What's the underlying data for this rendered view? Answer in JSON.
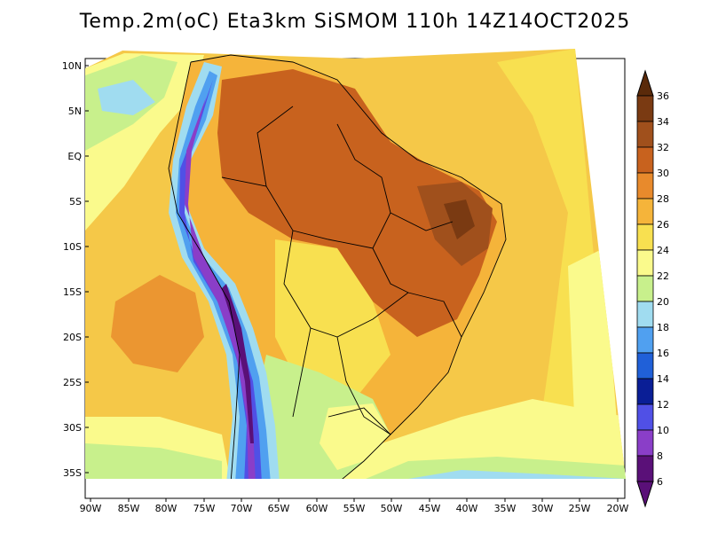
{
  "title": "Temp.2m(oC) Eta3km SiSMOM 110h 14Z14OCT2025",
  "lat_labels": [
    "10N",
    "5N",
    "EQ",
    "5S",
    "10S",
    "15S",
    "20S",
    "25S",
    "30S",
    "35S"
  ],
  "lon_labels": [
    "90W",
    "85W",
    "80W",
    "75W",
    "70W",
    "65W",
    "60W",
    "55W",
    "50W",
    "45W",
    "40W",
    "35W",
    "30W",
    "25W",
    "20W"
  ],
  "colorbar": {
    "labels": [
      "36",
      "34",
      "32",
      "30",
      "28",
      "26",
      "24",
      "22",
      "20",
      "18",
      "16",
      "14",
      "12",
      "10",
      "8",
      "6"
    ],
    "colors_top_to_bottom": [
      "#5a2a0a",
      "#7a3a12",
      "#a0501c",
      "#c8621e",
      "#e88a2c",
      "#f5b43a",
      "#f8e050",
      "#fafa8c",
      "#c8f08c",
      "#a0dcf0",
      "#50a0f0",
      "#2060d8",
      "#0a1e96",
      "#5050e6",
      "#8a3ec8",
      "#5a1078"
    ]
  },
  "colors": {
    "background": "#ffffff",
    "ocean_warm": "#f8e050",
    "land_hot": "#c8621e"
  }
}
